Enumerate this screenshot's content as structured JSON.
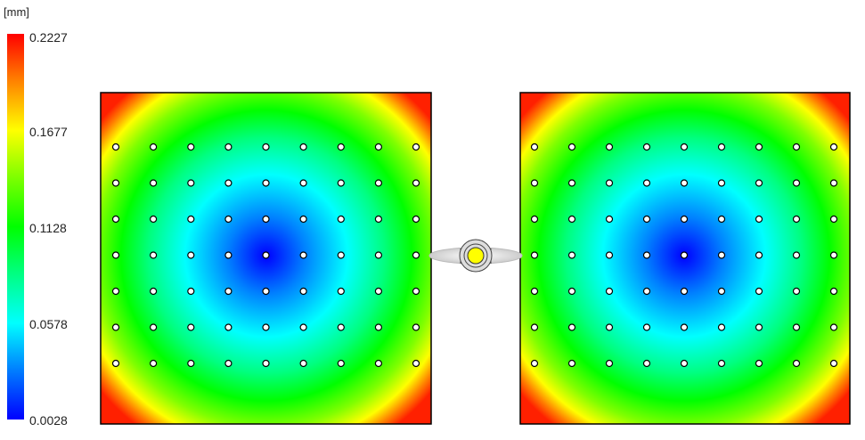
{
  "legend": {
    "unit": "[mm]",
    "ticks": [
      "0.2227",
      "0.1677",
      "0.1128",
      "0.0578",
      "0.0028"
    ],
    "colors": [
      "#ff0000",
      "#ffff00",
      "#00ff00",
      "#00ffff",
      "#0000ff"
    ]
  },
  "plates": [
    {
      "name": "left-plate",
      "hot_corner": "top-left & bottom-left"
    },
    {
      "name": "right-plate",
      "hot_corner": "top-right & bottom-right"
    }
  ],
  "pin_grid": {
    "rows": 7,
    "cols": 9
  },
  "gate": {
    "color": "#ffff00"
  }
}
